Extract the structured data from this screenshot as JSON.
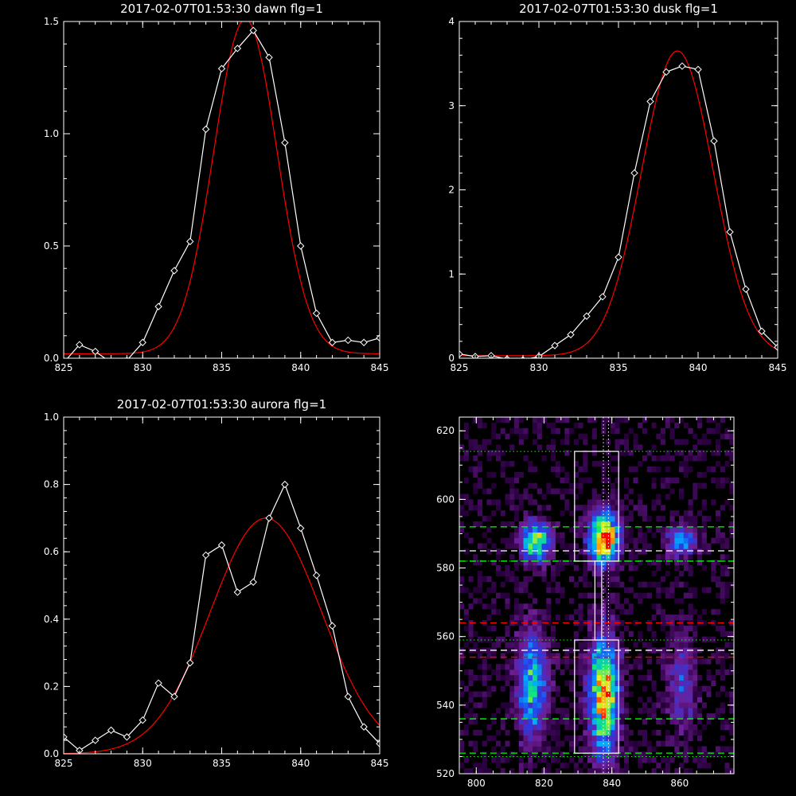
{
  "chart_data": [
    {
      "type": "line",
      "title": "2017-02-07T01:53:30 dawn flg=1",
      "xlim": [
        825,
        845
      ],
      "ylim": [
        0,
        1.5
      ],
      "xticks": [
        "825",
        "830",
        "835",
        "840",
        "845"
      ],
      "yticks": [
        "0.0",
        "0.5",
        "1.0",
        "1.5"
      ],
      "series": [
        {
          "color": "#ffffff",
          "marker": "diamond",
          "x": [
            825,
            826,
            827,
            828,
            829,
            830,
            831,
            832,
            833,
            834,
            835,
            836,
            837,
            838,
            839,
            840,
            841,
            842,
            843,
            844,
            845
          ],
          "y": [
            -0.02,
            0.06,
            0.03,
            -0.02,
            -0.01,
            0.07,
            0.23,
            0.39,
            0.52,
            1.02,
            1.29,
            1.38,
            1.46,
            1.34,
            0.96,
            0.5,
            0.2,
            0.07,
            0.08,
            0.07,
            0.09
          ]
        },
        {
          "color": "#ff0000",
          "kind": "gaussian_fit",
          "amplitude": 1.49,
          "center": 836.5,
          "sigma": 2.0,
          "offset": 0.02
        }
      ]
    },
    {
      "type": "line",
      "title": "2017-02-07T01:53:30 dusk flg=1",
      "xlim": [
        825,
        845
      ],
      "ylim": [
        0,
        4
      ],
      "xticks": [
        "825",
        "830",
        "835",
        "840",
        "845"
      ],
      "yticks": [
        "0",
        "1",
        "2",
        "3",
        "4"
      ],
      "series": [
        {
          "color": "#ffffff",
          "marker": "diamond",
          "x": [
            825,
            826,
            827,
            828,
            829,
            830,
            831,
            832,
            833,
            834,
            835,
            836,
            837,
            838,
            839,
            840,
            841,
            842,
            843,
            844,
            845
          ],
          "y": [
            0.05,
            0.02,
            0.03,
            -0.01,
            -0.02,
            0.02,
            0.15,
            0.28,
            0.5,
            0.73,
            1.2,
            2.2,
            3.05,
            3.4,
            3.47,
            3.43,
            2.58,
            1.5,
            0.82,
            0.32,
            0.13
          ]
        },
        {
          "color": "#ff0000",
          "kind": "gaussian_fit",
          "amplitude": 3.62,
          "center": 838.7,
          "sigma": 2.25,
          "offset": 0.03
        }
      ]
    },
    {
      "type": "line",
      "title": "2017-02-07T01:53:30 aurora flg=1",
      "xlim": [
        825,
        845
      ],
      "ylim": [
        0,
        1.0
      ],
      "xticks": [
        "825",
        "830",
        "835",
        "840",
        "845"
      ],
      "yticks": [
        "0.0",
        "0.2",
        "0.4",
        "0.6",
        "0.8",
        "1.0"
      ],
      "series": [
        {
          "color": "#ffffff",
          "marker": "diamond",
          "x": [
            825,
            826,
            827,
            828,
            829,
            830,
            831,
            832,
            833,
            834,
            835,
            836,
            837,
            838,
            839,
            840,
            841,
            842,
            843,
            844,
            845
          ],
          "y": [
            0.05,
            0.01,
            0.04,
            0.07,
            0.05,
            0.1,
            0.21,
            0.17,
            0.27,
            0.59,
            0.62,
            0.48,
            0.51,
            0.7,
            0.8,
            0.67,
            0.53,
            0.38,
            0.17,
            0.08,
            0.03
          ]
        },
        {
          "color": "#ff0000",
          "kind": "gaussian_fit",
          "amplitude": 0.7,
          "center": 837.8,
          "sigma": 3.5,
          "offset": 0.0
        }
      ]
    },
    {
      "type": "heatmap",
      "title": "",
      "xlim": [
        795,
        876
      ],
      "ylim": [
        520,
        624
      ],
      "xticks": [
        "800",
        "820",
        "840",
        "860"
      ],
      "yticks": [
        "520",
        "540",
        "560",
        "580",
        "600",
        "620"
      ],
      "colormap": "rainbow",
      "blobs": [
        {
          "x": 817,
          "y": 587,
          "sx": 3,
          "sy": 4,
          "peak": 0.7
        },
        {
          "x": 837,
          "y": 588,
          "sx": 3,
          "sy": 5,
          "peak": 1.0
        },
        {
          "x": 860,
          "y": 587,
          "sx": 3,
          "sy": 3,
          "peak": 0.45
        },
        {
          "x": 816,
          "y": 545,
          "sx": 3,
          "sy": 11,
          "peak": 0.55
        },
        {
          "x": 837,
          "y": 542,
          "sx": 3,
          "sy": 12,
          "peak": 0.8
        },
        {
          "x": 860,
          "y": 545,
          "sx": 3,
          "sy": 9,
          "peak": 0.3
        }
      ],
      "overlays": {
        "boxes": [
          {
            "color": "#ffffff",
            "x": [
              829,
              842
            ],
            "y": [
              582,
              614
            ]
          },
          {
            "color": "#ffffff",
            "x": [
              829,
              842
            ],
            "y": [
              526,
              559
            ]
          },
          {
            "color": "#ffffff",
            "x": [
              835,
              837
            ],
            "y": [
              559,
              582
            ]
          }
        ],
        "hlines": [
          {
            "y": 614,
            "color": "#00ff00",
            "style": "dotted"
          },
          {
            "y": 592,
            "color": "#00ff00",
            "style": "dashed"
          },
          {
            "y": 585,
            "color": "#ffffff",
            "style": "dashed"
          },
          {
            "y": 582,
            "color": "#00ff00",
            "style": "dashed"
          },
          {
            "y": 582,
            "color": "#00ff00",
            "style": "dotted"
          },
          {
            "y": 564,
            "color": "#ff0000",
            "style": "dashed"
          },
          {
            "y": 559,
            "color": "#00ff00",
            "style": "dotted"
          },
          {
            "y": 556,
            "color": "#ffffff",
            "style": "dashed"
          },
          {
            "y": 554,
            "color": "#ff0000",
            "style": "dashed"
          },
          {
            "y": 536,
            "color": "#00ff00",
            "style": "dashed"
          },
          {
            "y": 526,
            "color": "#00ff00",
            "style": "dashed"
          },
          {
            "y": 525,
            "color": "#00ff00",
            "style": "dotted"
          }
        ],
        "vlines": [
          {
            "x": 837.5,
            "color": "#ffffff",
            "style": "dotted"
          },
          {
            "x": 839,
            "color": "#ffffff",
            "style": "dotted"
          }
        ]
      }
    }
  ]
}
